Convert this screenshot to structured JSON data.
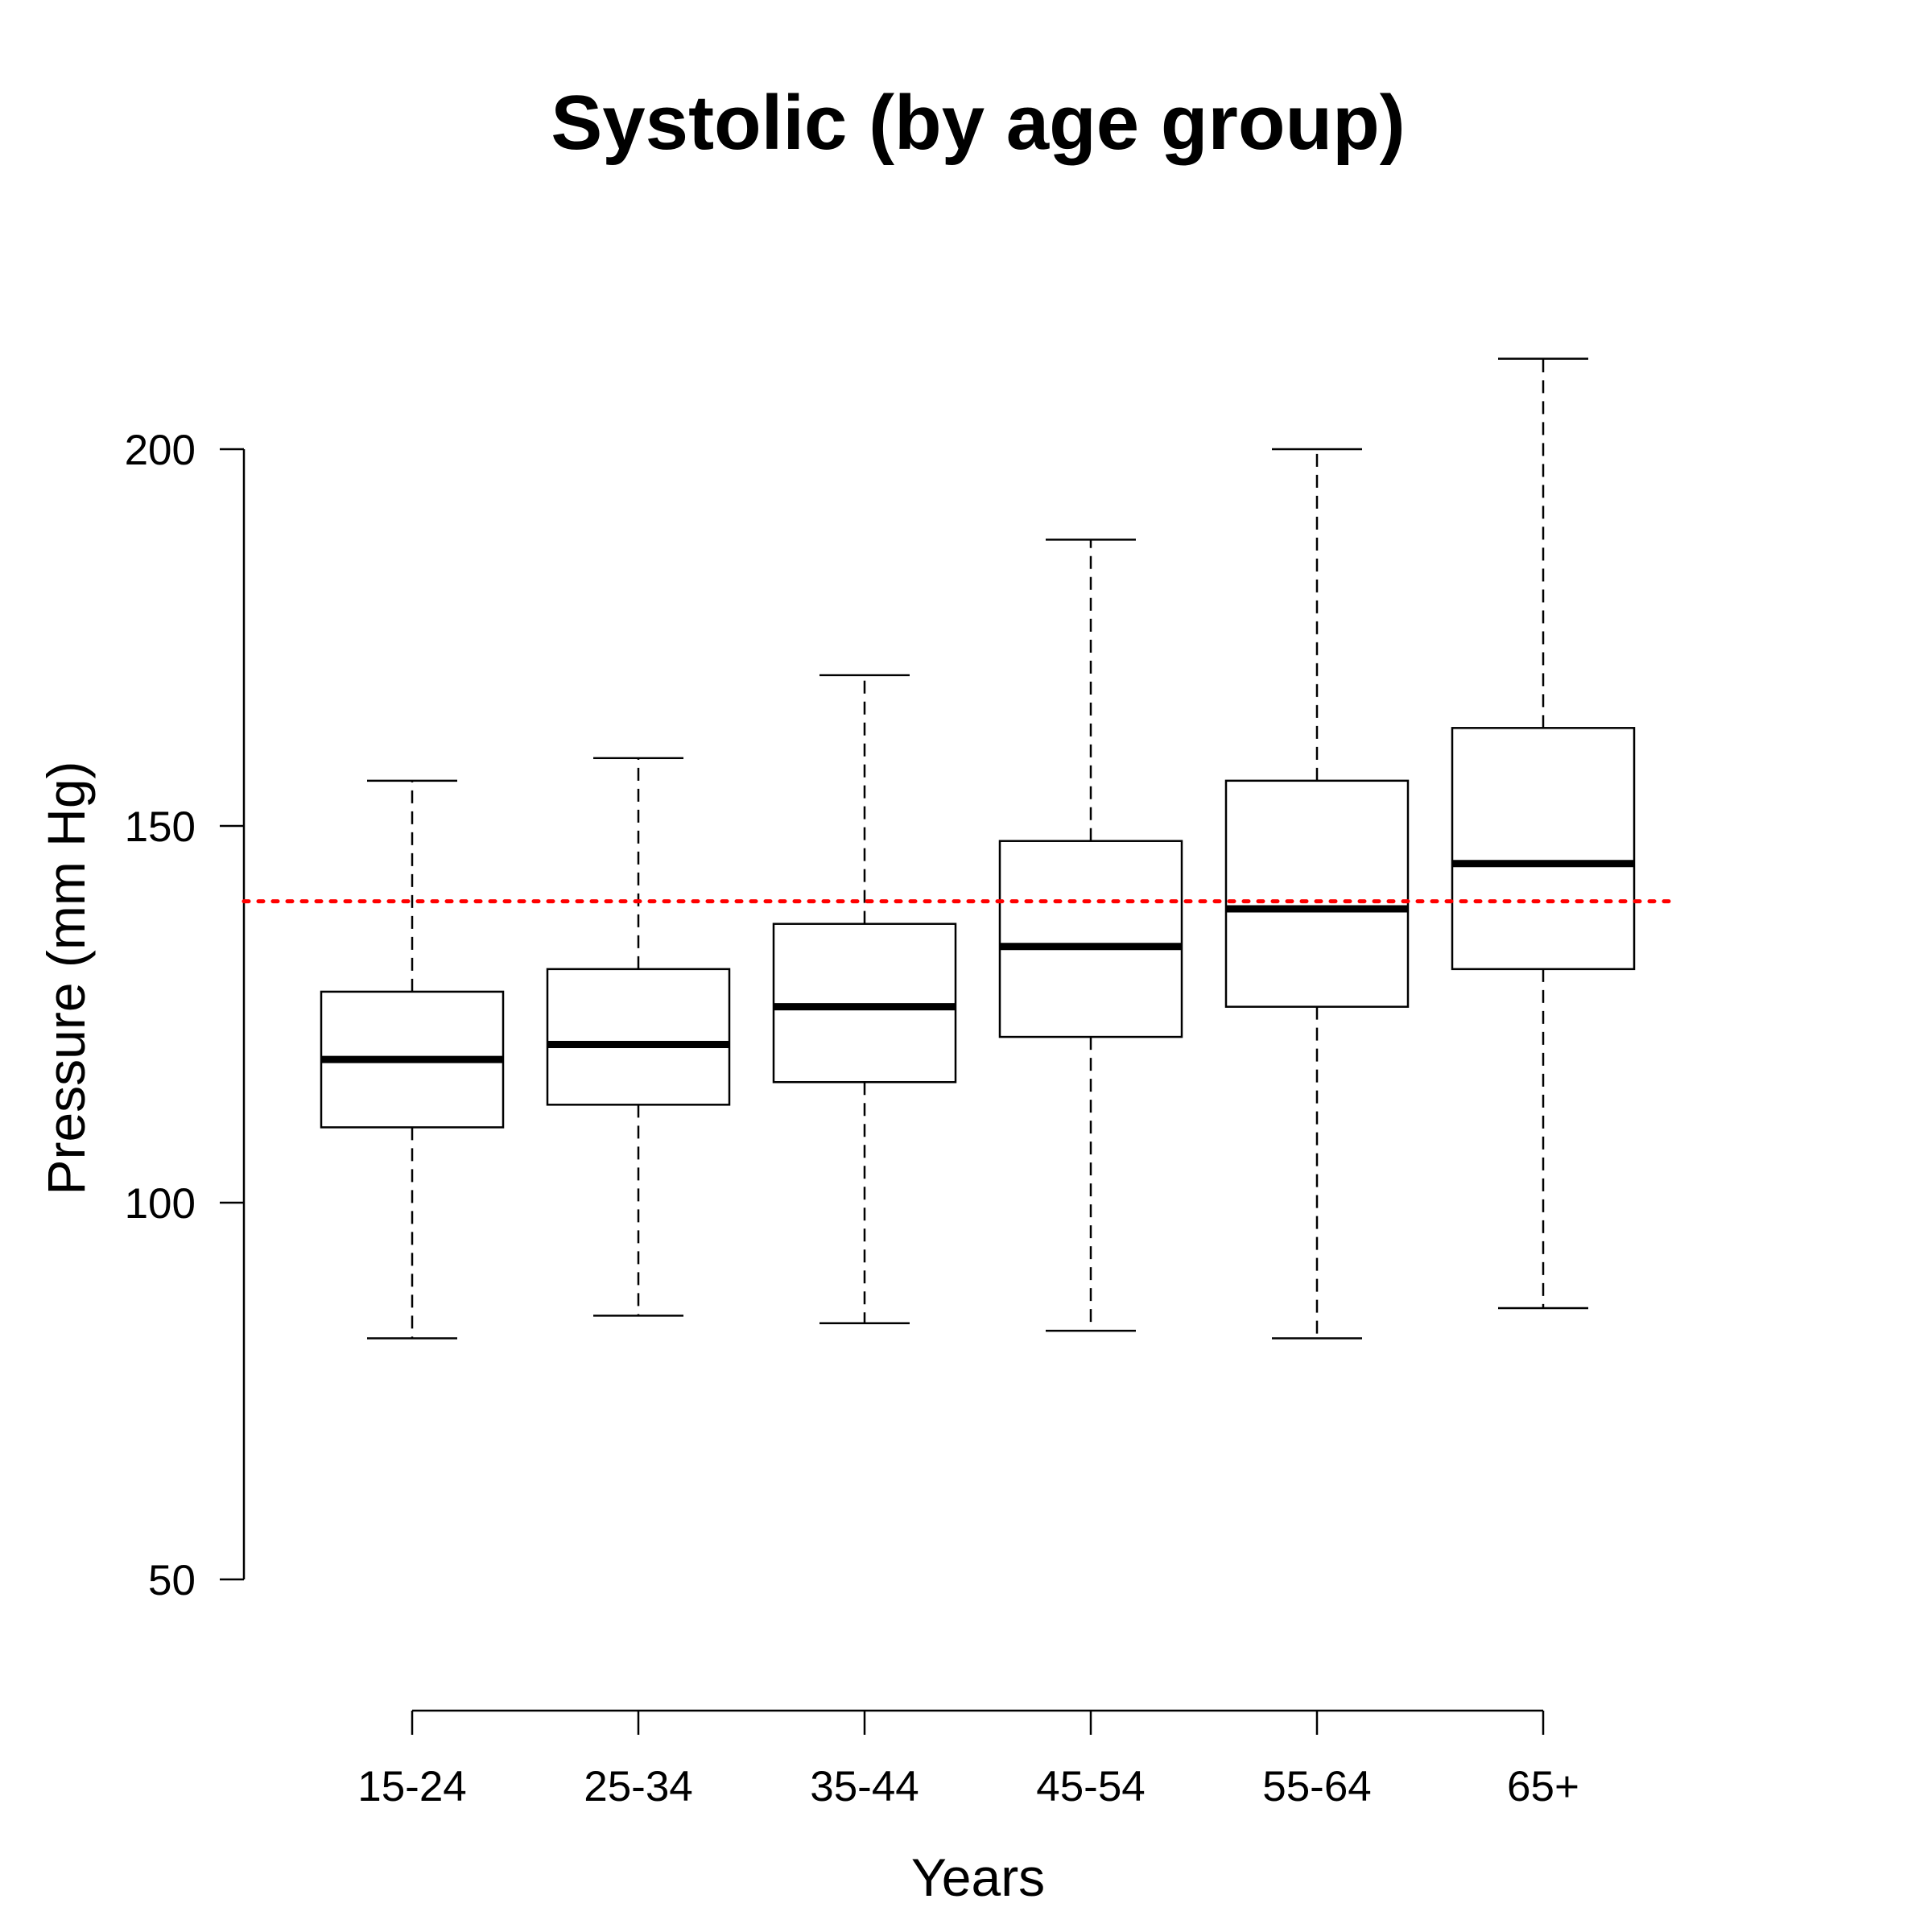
{
  "chart_data": {
    "type": "boxplot",
    "title": "Systolic (by age group)",
    "xlabel": "Years",
    "ylabel": "Pressure (mm Hg)",
    "ylim": [
      50,
      215
    ],
    "yticks": [
      50,
      100,
      150,
      200
    ],
    "categories": [
      "15-24",
      "25-34",
      "35-44",
      "45-54",
      "55-64",
      "65+"
    ],
    "boxes": [
      {
        "category": "15-24",
        "whisker_low": 82,
        "q1": 110,
        "median": 119,
        "q3": 128,
        "whisker_high": 156
      },
      {
        "category": "25-34",
        "whisker_low": 85,
        "q1": 113,
        "median": 121,
        "q3": 131,
        "whisker_high": 159
      },
      {
        "category": "35-44",
        "whisker_low": 84,
        "q1": 116,
        "median": 126,
        "q3": 137,
        "whisker_high": 170
      },
      {
        "category": "45-54",
        "whisker_low": 83,
        "q1": 122,
        "median": 134,
        "q3": 148,
        "whisker_high": 188
      },
      {
        "category": "55-64",
        "whisker_low": 82,
        "q1": 126,
        "median": 139,
        "q3": 156,
        "whisker_high": 200
      },
      {
        "category": "65+",
        "whisker_low": 86,
        "q1": 131,
        "median": 145,
        "q3": 163,
        "whisker_high": 212
      }
    ],
    "reference_line": {
      "value": 140,
      "color": "#ff0000",
      "style": "dotted"
    },
    "grid": false,
    "colors": {
      "box_fill": "#ffffff",
      "stroke": "#000000",
      "reference": "#ff0000"
    }
  }
}
